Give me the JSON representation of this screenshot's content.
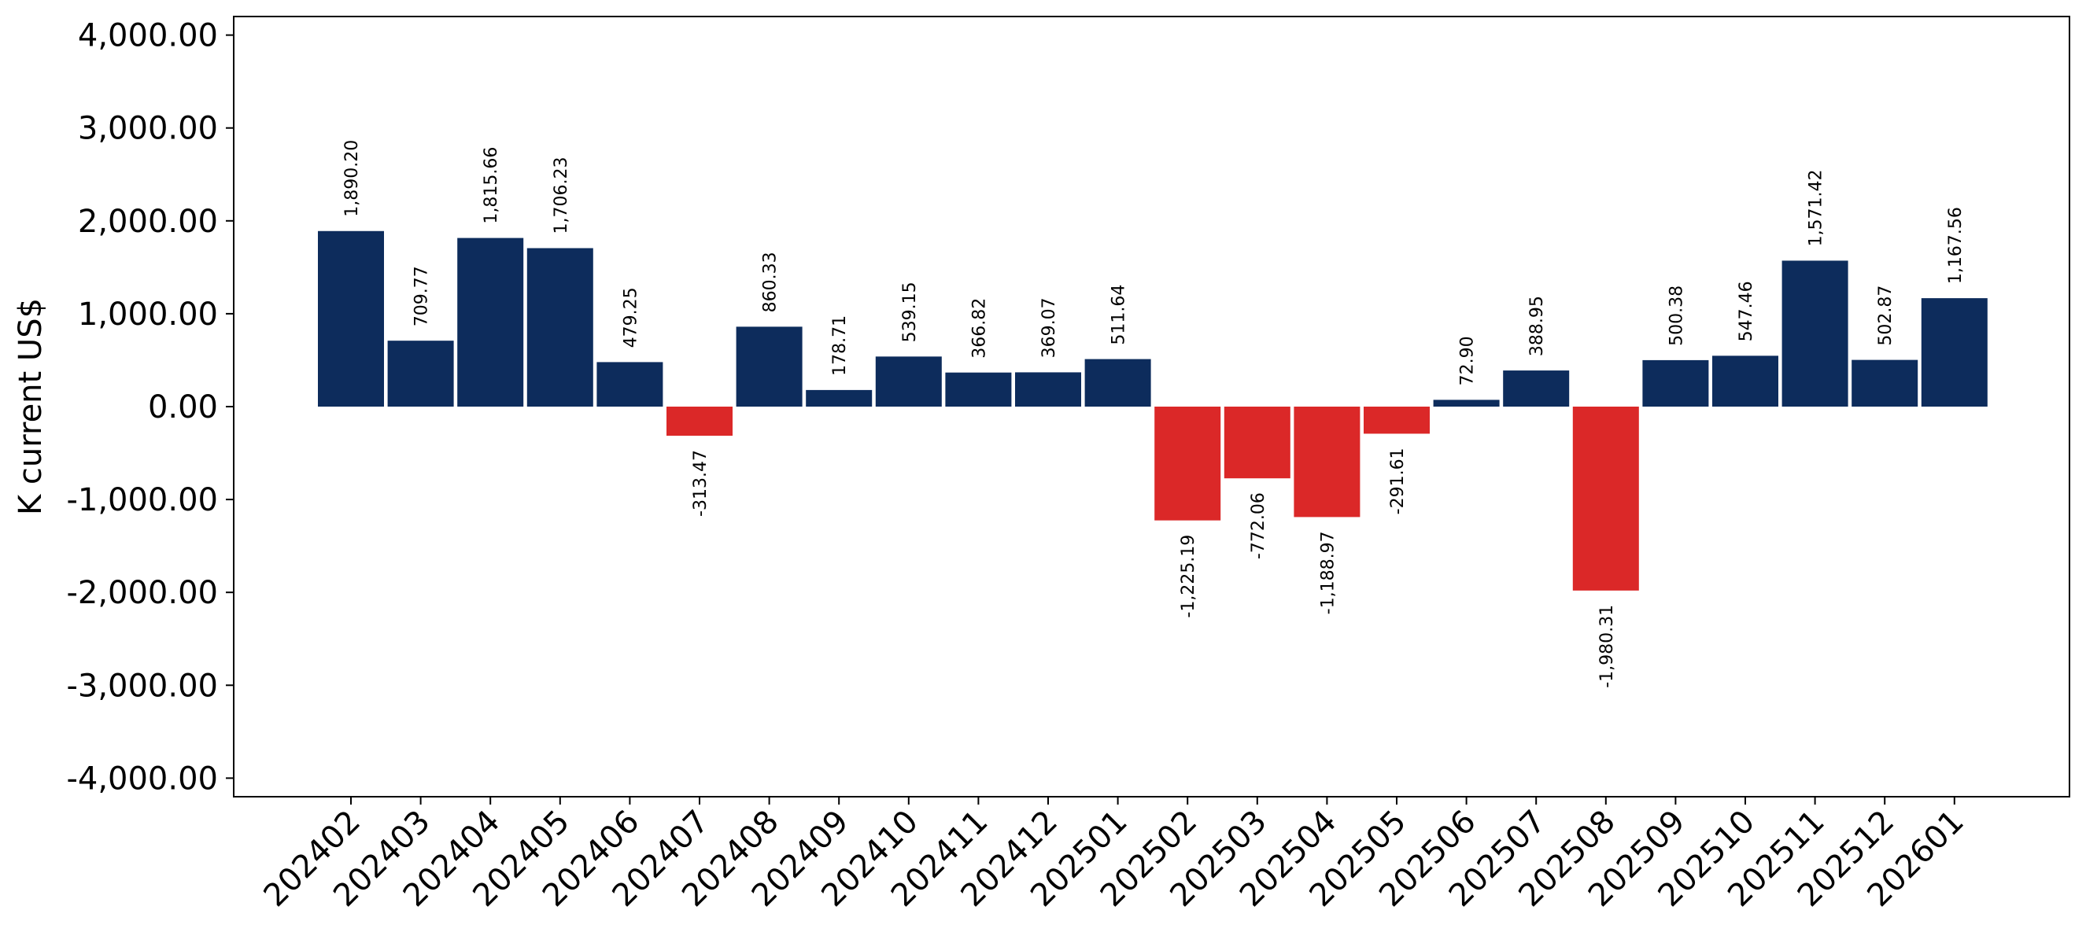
{
  "chart_data": {
    "type": "bar",
    "title": "",
    "xlabel": "",
    "ylabel": "K current US$",
    "ylim": [
      -4200,
      4200
    ],
    "yticks": [
      4000,
      3000,
      2000,
      1000,
      0,
      -1000,
      -2000,
      -3000,
      -4000
    ],
    "ytick_labels": [
      "4,000.00",
      "3,000.00",
      "2,000.00",
      "1,000.00",
      "0.00",
      "-1,000.00",
      "-2,000.00",
      "-3,000.00",
      "-4,000.00"
    ],
    "grid": false,
    "legend": "none",
    "colors": {
      "positive": "#0d2c5c",
      "negative": "#db2828"
    },
    "categories": [
      "202402",
      "202403",
      "202404",
      "202405",
      "202406",
      "202407",
      "202408",
      "202409",
      "202410",
      "202411",
      "202412",
      "202501",
      "202502",
      "202503",
      "202504",
      "202505",
      "202506",
      "202507",
      "202508",
      "202509",
      "202510",
      "202511",
      "202512",
      "202601"
    ],
    "values": [
      1890.2,
      709.77,
      1815.66,
      1706.23,
      479.25,
      -313.47,
      860.33,
      178.71,
      539.15,
      366.82,
      369.07,
      511.64,
      -1225.19,
      -772.06,
      -1188.97,
      -291.61,
      72.9,
      388.95,
      -1980.31,
      500.38,
      547.46,
      1571.42,
      502.87,
      1167.56
    ],
    "value_labels": [
      "1,890.20",
      "709.77",
      "1,815.66",
      "1,706.23",
      "479.25",
      "-313.47",
      "860.33",
      "178.71",
      "539.15",
      "366.82",
      "369.07",
      "511.64",
      "-1,225.19",
      "-772.06",
      "-1,188.97",
      "-291.61",
      "72.90",
      "388.95",
      "-1,980.31",
      "500.38",
      "547.46",
      "1,571.42",
      "502.87",
      "1,167.56"
    ]
  }
}
